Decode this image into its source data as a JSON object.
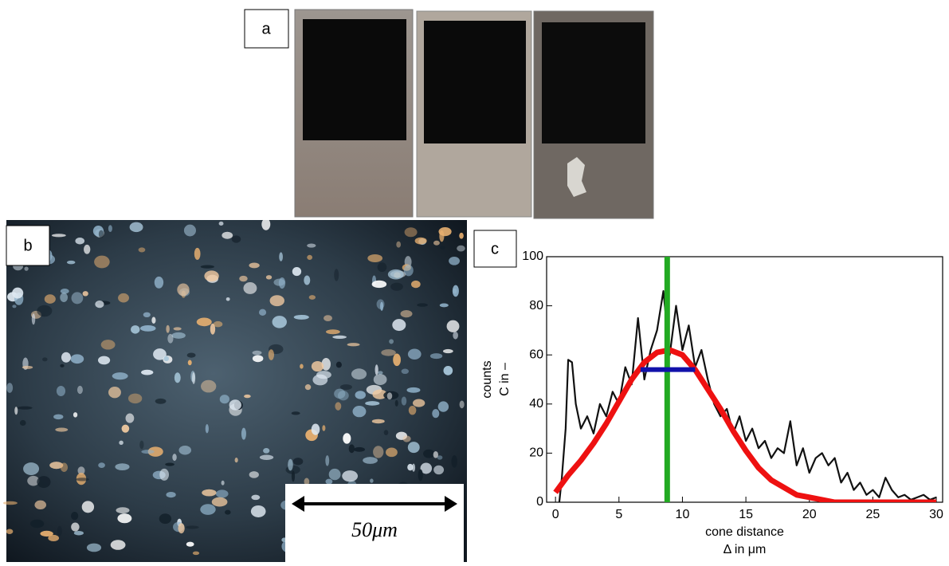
{
  "panel_labels": [
    "a",
    "b",
    "c"
  ],
  "scale_bar": "50μm",
  "chart_data": {
    "type": "line",
    "xlabel": [
      "cone distance",
      "Δ in μm"
    ],
    "ylabel": [
      "counts",
      "C in –"
    ],
    "xlim": [
      -0.7,
      30.5
    ],
    "ylim": [
      0,
      100
    ],
    "xticks": [
      0,
      5,
      10,
      15,
      20,
      25,
      30
    ],
    "yticks": [
      0,
      20,
      40,
      60,
      80,
      100
    ],
    "series": [
      {
        "color": "#111111",
        "x": [
          0.3,
          0.5,
          0.8,
          1,
          1.3,
          1.6,
          2,
          2.5,
          3,
          3.5,
          4,
          4.5,
          5,
          5.5,
          6,
          6.5,
          7,
          7.5,
          8,
          8.5,
          9,
          9.5,
          10,
          10.5,
          11,
          11.5,
          12,
          12.5,
          13,
          13.5,
          14,
          14.5,
          15,
          15.5,
          16,
          16.5,
          17,
          17.5,
          18,
          18.5,
          19,
          19.5,
          20,
          20.5,
          21,
          21.5,
          22,
          22.5,
          23,
          23.5,
          24,
          24.5,
          25,
          25.5,
          26,
          26.5,
          27,
          27.5,
          28,
          28.5,
          29,
          29.5,
          30
        ],
        "values": [
          0,
          10,
          30,
          58,
          57,
          40,
          30,
          35,
          28,
          40,
          35,
          45,
          40,
          55,
          48,
          75,
          50,
          62,
          70,
          86,
          60,
          80,
          62,
          72,
          55,
          62,
          50,
          40,
          35,
          38,
          28,
          35,
          25,
          30,
          22,
          25,
          18,
          22,
          20,
          33,
          15,
          22,
          12,
          18,
          20,
          15,
          18,
          8,
          12,
          5,
          8,
          3,
          5,
          2,
          10,
          5,
          2,
          3,
          1,
          2,
          3,
          1,
          2
        ]
      },
      {
        "color": "#ee1111",
        "x": [
          0,
          1,
          2,
          3,
          4,
          5,
          6,
          7,
          8,
          9,
          10,
          11,
          12,
          13,
          14,
          15,
          16,
          17,
          18,
          19,
          20,
          21,
          22,
          23,
          24,
          25,
          26,
          27,
          28,
          29,
          30
        ],
        "values": [
          4,
          11,
          17,
          24,
          32,
          41,
          50,
          57,
          61,
          62,
          60,
          54,
          46,
          38,
          29,
          21,
          14,
          9,
          6,
          3,
          2,
          1,
          0,
          0,
          0,
          0,
          0,
          0,
          0,
          0,
          0
        ]
      }
    ],
    "vline": {
      "x": 8.8,
      "color": "#22aa22"
    },
    "hline": {
      "y": 54,
      "xmin": 6.7,
      "xmax": 11,
      "color": "#1111aa"
    }
  }
}
